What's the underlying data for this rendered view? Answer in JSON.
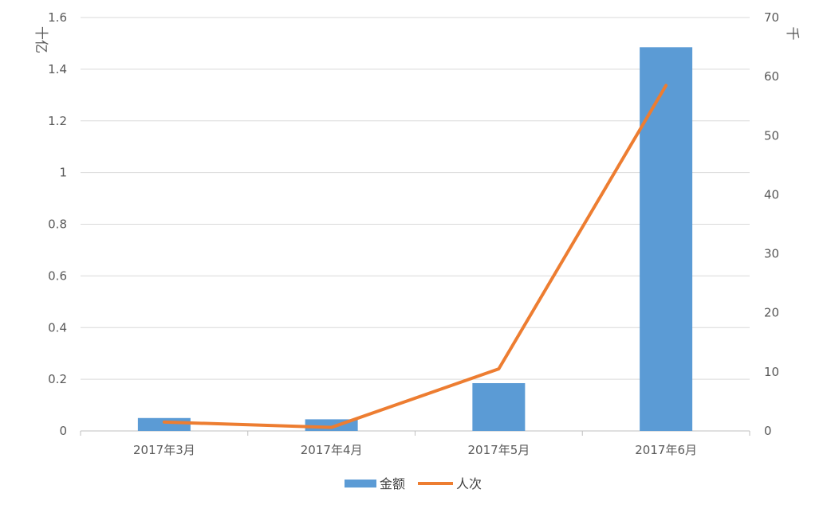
{
  "chart_data": {
    "type": "bar",
    "categories": [
      "2017年3月",
      "2017年4月",
      "2017年5月",
      "2017年6月"
    ],
    "series": [
      {
        "name": "金额",
        "type": "bar",
        "axis": "left",
        "color": "#5B9BD5",
        "values": [
          0.05,
          0.045,
          0.185,
          1.485
        ]
      },
      {
        "name": "人次",
        "type": "line",
        "axis": "right",
        "color": "#ED7D31",
        "values": [
          1.5,
          0.6,
          10.5,
          58.5
        ]
      }
    ],
    "ylabel": "十亿",
    "y2label": "千",
    "ylim": [
      0,
      1.6
    ],
    "yticks": [
      "0",
      "0.2",
      "0.4",
      "0.6",
      "0.8",
      "1",
      "1.2",
      "1.4",
      "1.6"
    ],
    "y2lim": [
      0,
      70
    ],
    "y2ticks": [
      "0",
      "10",
      "20",
      "30",
      "40",
      "50",
      "60",
      "70"
    ],
    "grid": true,
    "legend": "bottom"
  }
}
